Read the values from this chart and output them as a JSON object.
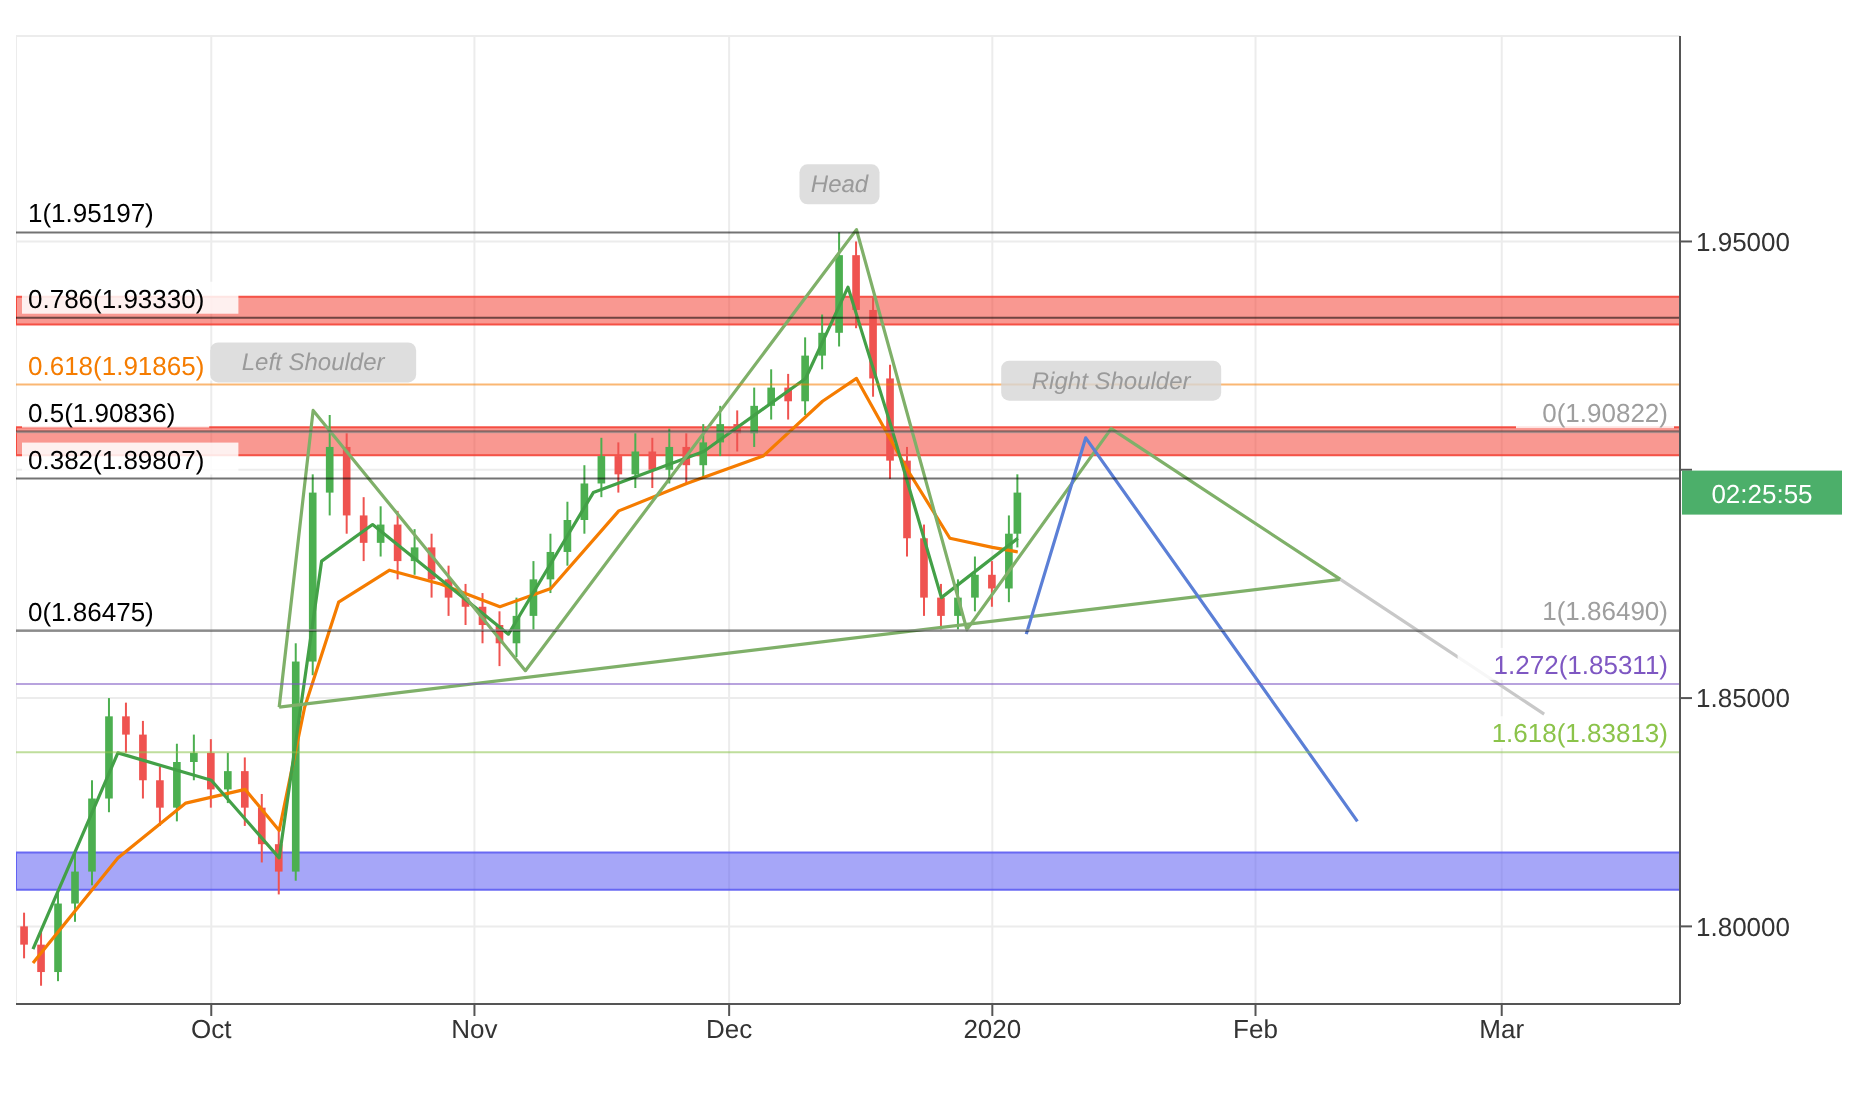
{
  "chart_data": {
    "type": "candlestick",
    "x": [
      "2019-09-09",
      "2019-09-11",
      "2019-09-13",
      "2019-09-15",
      "2019-09-17",
      "2019-09-19",
      "2019-09-21",
      "2019-09-23",
      "2019-09-25",
      "2019-09-27",
      "2019-09-29",
      "2019-10-01",
      "2019-10-03",
      "2019-10-05",
      "2019-10-07",
      "2019-10-09",
      "2019-10-11",
      "2019-10-13",
      "2019-10-15",
      "2019-10-17",
      "2019-10-19",
      "2019-10-21",
      "2019-10-23",
      "2019-10-25",
      "2019-10-27",
      "2019-10-29",
      "2019-10-31",
      "2019-11-02",
      "2019-11-04",
      "2019-11-06",
      "2019-11-08",
      "2019-11-10",
      "2019-11-12",
      "2019-11-14",
      "2019-11-16",
      "2019-11-18",
      "2019-11-20",
      "2019-11-22",
      "2019-11-24",
      "2019-11-26",
      "2019-11-28",
      "2019-11-30",
      "2019-12-02",
      "2019-12-04",
      "2019-12-06",
      "2019-12-08",
      "2019-12-10",
      "2019-12-12",
      "2019-12-14",
      "2019-12-16",
      "2019-12-18",
      "2019-12-20",
      "2019-12-22",
      "2019-12-24",
      "2019-12-26",
      "2019-12-28",
      "2019-12-30",
      "2020-01-01",
      "2020-01-03",
      "2020-01-04"
    ],
    "ohlc": [
      [
        1.8,
        1.803,
        1.793,
        1.796
      ],
      [
        1.796,
        1.799,
        1.787,
        1.79
      ],
      [
        1.79,
        1.808,
        1.788,
        1.805
      ],
      [
        1.805,
        1.816,
        1.801,
        1.812
      ],
      [
        1.812,
        1.832,
        1.809,
        1.828
      ],
      [
        1.828,
        1.85,
        1.825,
        1.846
      ],
      [
        1.846,
        1.849,
        1.838,
        1.842
      ],
      [
        1.842,
        1.845,
        1.828,
        1.832
      ],
      [
        1.832,
        1.835,
        1.822,
        1.826
      ],
      [
        1.826,
        1.84,
        1.823,
        1.836
      ],
      [
        1.836,
        1.842,
        1.832,
        1.838
      ],
      [
        1.838,
        1.841,
        1.826,
        1.83
      ],
      [
        1.83,
        1.838,
        1.827,
        1.834
      ],
      [
        1.834,
        1.837,
        1.822,
        1.826
      ],
      [
        1.826,
        1.829,
        1.814,
        1.818
      ],
      [
        1.818,
        1.821,
        1.807,
        1.812
      ],
      [
        1.812,
        1.862,
        1.81,
        1.858
      ],
      [
        1.858,
        1.899,
        1.855,
        1.895
      ],
      [
        1.895,
        1.912,
        1.89,
        1.905
      ],
      [
        1.905,
        1.908,
        1.886,
        1.89
      ],
      [
        1.89,
        1.894,
        1.88,
        1.884
      ],
      [
        1.884,
        1.892,
        1.881,
        1.888
      ],
      [
        1.888,
        1.891,
        1.876,
        1.88
      ],
      [
        1.88,
        1.887,
        1.877,
        1.883
      ],
      [
        1.883,
        1.886,
        1.872,
        1.876
      ],
      [
        1.876,
        1.879,
        1.868,
        1.872
      ],
      [
        1.872,
        1.875,
        1.866,
        1.87
      ],
      [
        1.87,
        1.873,
        1.862,
        1.866
      ],
      [
        1.866,
        1.869,
        1.857,
        1.862
      ],
      [
        1.862,
        1.872,
        1.859,
        1.868
      ],
      [
        1.868,
        1.88,
        1.865,
        1.876
      ],
      [
        1.876,
        1.886,
        1.873,
        1.882
      ],
      [
        1.882,
        1.893,
        1.879,
        1.889
      ],
      [
        1.889,
        1.901,
        1.886,
        1.897
      ],
      [
        1.897,
        1.907,
        1.894,
        1.903
      ],
      [
        1.903,
        1.906,
        1.895,
        1.899
      ],
      [
        1.899,
        1.908,
        1.896,
        1.904
      ],
      [
        1.904,
        1.907,
        1.896,
        1.9
      ],
      [
        1.9,
        1.909,
        1.897,
        1.905
      ],
      [
        1.905,
        1.908,
        1.897,
        1.901
      ],
      [
        1.901,
        1.91,
        1.898,
        1.906
      ],
      [
        1.906,
        1.914,
        1.903,
        1.91
      ],
      [
        1.91,
        1.913,
        1.904,
        1.908
      ],
      [
        1.908,
        1.918,
        1.905,
        1.914
      ],
      [
        1.914,
        1.922,
        1.911,
        1.918
      ],
      [
        1.918,
        1.921,
        1.911,
        1.915
      ],
      [
        1.915,
        1.929,
        1.912,
        1.925
      ],
      [
        1.925,
        1.934,
        1.922,
        1.93
      ],
      [
        1.93,
        1.952,
        1.927,
        1.947
      ],
      [
        1.947,
        1.95,
        1.931,
        1.935
      ],
      [
        1.935,
        1.938,
        1.916,
        1.92
      ],
      [
        1.92,
        1.923,
        1.898,
        1.902
      ],
      [
        1.902,
        1.905,
        1.881,
        1.885
      ],
      [
        1.885,
        1.888,
        1.868,
        1.872
      ],
      [
        1.872,
        1.875,
        1.865,
        1.868
      ],
      [
        1.868,
        1.876,
        1.865,
        1.872
      ],
      [
        1.872,
        1.881,
        1.869,
        1.877
      ],
      [
        1.877,
        1.88,
        1.87,
        1.874
      ],
      [
        1.874,
        1.89,
        1.871,
        1.886
      ],
      [
        1.886,
        1.899,
        1.883,
        1.895
      ]
    ],
    "colors": [
      "#ef5350",
      "#ef5350",
      "#4caf50",
      "#4caf50",
      "#4caf50",
      "#4caf50",
      "#ef5350",
      "#ef5350",
      "#ef5350",
      "#4caf50",
      "#4caf50",
      "#ef5350",
      "#4caf50",
      "#ef5350",
      "#ef5350",
      "#ef5350",
      "#4caf50",
      "#4caf50",
      "#4caf50",
      "#ef5350",
      "#ef5350",
      "#4caf50",
      "#ef5350",
      "#4caf50",
      "#ef5350",
      "#ef5350",
      "#ef5350",
      "#ef5350",
      "#ef5350",
      "#4caf50",
      "#4caf50",
      "#4caf50",
      "#4caf50",
      "#4caf50",
      "#4caf50",
      "#ef5350",
      "#4caf50",
      "#ef5350",
      "#4caf50",
      "#ef5350",
      "#4caf50",
      "#4caf50",
      "#ef5350",
      "#4caf50",
      "#4caf50",
      "#ef5350",
      "#4caf50",
      "#4caf50",
      "#4caf50",
      "#ef5350",
      "#ef5350",
      "#ef5350",
      "#ef5350",
      "#ef5350",
      "#ef5350",
      "#4caf50",
      "#4caf50",
      "#ef5350",
      "#4caf50",
      "#4caf50"
    ],
    "series": [
      {
        "type": "line",
        "color": "#f57c00",
        "x": [
          "2019-09-10",
          "2019-09-20",
          "2019-09-28",
          "2019-10-05",
          "2019-10-09",
          "2019-10-12",
          "2019-10-16",
          "2019-10-22",
          "2019-10-28",
          "2019-11-04",
          "2019-11-10",
          "2019-11-18",
          "2019-11-26",
          "2019-12-05",
          "2019-12-12",
          "2019-12-16",
          "2019-12-22",
          "2019-12-27",
          "2020-01-01",
          "2020-01-04"
        ],
        "values": [
          1.792,
          1.815,
          1.827,
          1.83,
          1.821,
          1.848,
          1.871,
          1.878,
          1.875,
          1.87,
          1.874,
          1.891,
          1.897,
          1.903,
          1.915,
          1.92,
          1.9,
          1.885,
          1.883,
          1.882
        ]
      },
      {
        "type": "line",
        "color": "#43a047",
        "x": [
          "2019-09-10",
          "2019-09-20",
          "2019-10-01",
          "2019-10-09",
          "2019-10-14",
          "2019-10-20",
          "2019-11-01",
          "2019-11-05",
          "2019-11-15",
          "2019-11-28",
          "2019-12-10",
          "2019-12-15",
          "2019-12-20",
          "2019-12-26",
          "2020-01-04"
        ],
        "values": [
          1.795,
          1.838,
          1.832,
          1.815,
          1.88,
          1.888,
          1.87,
          1.864,
          1.895,
          1.904,
          1.92,
          1.94,
          1.91,
          1.872,
          1.885
        ]
      },
      {
        "type": "line",
        "color": "#7fb069",
        "x": [
          "2019-10-09",
          "2019-10-13",
          "2019-11-07",
          "2019-12-16",
          "2019-12-29",
          "2020-01-15",
          "2020-02-11"
        ],
        "values": [
          1.848,
          1.913,
          1.856,
          1.9526,
          1.865,
          1.909,
          1.876
        ]
      },
      {
        "type": "line",
        "color": "#7fb069",
        "x": [
          "2019-10-09",
          "2020-02-11"
        ],
        "values": [
          1.848,
          1.876
        ]
      },
      {
        "type": "line",
        "color": "#c8c8c8",
        "x": [
          "2020-02-11",
          "2020-03-06"
        ],
        "values": [
          1.876,
          1.8465
        ]
      },
      {
        "type": "line",
        "color": "#5b7fd6",
        "x": [
          "2020-01-05",
          "2020-01-12",
          "2020-02-13"
        ],
        "values": [
          1.864,
          1.907,
          1.823
        ]
      }
    ],
    "xlim": [
      "2019-09-08",
      "2020-03-22"
    ],
    "xticks": [
      {
        "value": "2019-10-01",
        "label": "Oct"
      },
      {
        "value": "2019-11-01",
        "label": "Nov"
      },
      {
        "value": "2019-12-01",
        "label": "Dec"
      },
      {
        "value": "2020-01-01",
        "label": "2020"
      },
      {
        "value": "2020-02-01",
        "label": "Feb"
      },
      {
        "value": "2020-03-01",
        "label": "Mar"
      }
    ],
    "ylim": [
      1.783,
      1.995
    ],
    "yticks": [
      {
        "value": 1.8,
        "label": "1.80000"
      },
      {
        "value": 1.85,
        "label": "1.85000"
      },
      {
        "value": 1.9,
        "label": null
      },
      {
        "value": 1.95,
        "label": "1.95000"
      }
    ],
    "grid": true,
    "bands": [
      {
        "axis": "y",
        "from": 1.9318,
        "to": 1.9379,
        "color": "#f44336"
      },
      {
        "axis": "y",
        "from": 1.9032,
        "to": 1.9093,
        "color": "#f44336"
      },
      {
        "axis": "y",
        "from": 1.808,
        "to": 1.8162,
        "color": "#5c5cf2"
      }
    ],
    "ref_lines": [
      {
        "axis": "y",
        "value": 1.95197,
        "label": "1(1.95197)",
        "color": "#000000"
      },
      {
        "axis": "y",
        "value": 1.9333,
        "label": "0.786(1.93330)",
        "color": "#000000"
      },
      {
        "axis": "y",
        "value": 1.91865,
        "label": "0.618(1.91865)",
        "color": "#f57c00"
      },
      {
        "axis": "y",
        "value": 1.90836,
        "label": "0.5(1.90836)",
        "color": "#000000"
      },
      {
        "axis": "y",
        "value": 1.89807,
        "label": "0.382(1.89807)",
        "color": "#000000"
      },
      {
        "axis": "y",
        "value": 1.86475,
        "label": "0(1.86475)",
        "color": "#000000"
      },
      {
        "axis": "y",
        "value": 1.90822,
        "label": "0(1.90822)",
        "color": "#9e9e9e"
      },
      {
        "axis": "y",
        "value": 1.8649,
        "label": "1(1.86490)",
        "color": "#9e9e9e"
      },
      {
        "axis": "y",
        "value": 1.85311,
        "label": "1.272(1.85311)",
        "color": "#7e57c2"
      },
      {
        "axis": "y",
        "value": 1.83813,
        "label": "1.618(1.83813)",
        "color": "#8bc34a"
      }
    ],
    "annotations": [
      "02:25:55",
      {
        "text": "Left Shoulder",
        "x": "2019-10-13",
        "y": 1.913
      },
      {
        "text": "Head",
        "x": "2019-12-14",
        "y": 1.952
      },
      {
        "text": "Right Shoulder",
        "x": "2020-01-15",
        "y": 1.909
      }
    ],
    "legend": false
  }
}
